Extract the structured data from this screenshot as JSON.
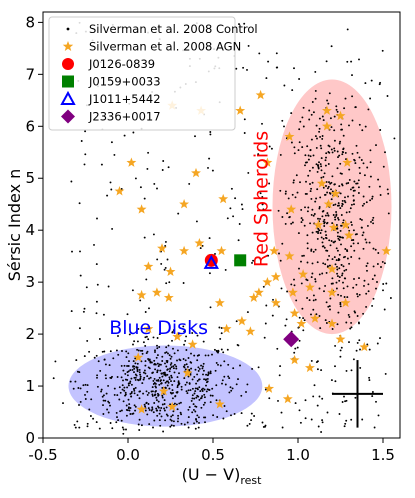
{
  "chart_data": {
    "type": "scatter",
    "xlabel_main": "(U − V)",
    "xlabel_sub": "rest",
    "ylabel": "Sérsic Index n",
    "xlim": [
      -0.5,
      1.6
    ],
    "ylim": [
      0,
      8.2
    ],
    "xticks": [
      -0.5,
      0.0,
      0.5,
      1.0,
      1.5
    ],
    "xtick_labels": [
      "-0.5",
      "0.0",
      "0.5",
      "1.0",
      "1.5"
    ],
    "yticks": [
      0,
      1,
      2,
      3,
      4,
      5,
      6,
      7,
      8
    ],
    "ytick_labels": [
      "0",
      "1",
      "2",
      "3",
      "4",
      "5",
      "6",
      "7",
      "8"
    ],
    "grid": false,
    "legend_position": "top-left",
    "legend": [
      {
        "label": "Silverman et al. 2008 Control",
        "marker": "dot",
        "color": "#000000"
      },
      {
        "label": "Silverman et al. 2008 AGN",
        "marker": "star",
        "color": "#f5a623"
      },
      {
        "label": "J0126-0839",
        "marker": "circle",
        "color": "#ff0000"
      },
      {
        "label": "J0159+0033",
        "marker": "square",
        "color": "#008000"
      },
      {
        "label": "J1011+5442",
        "marker": "triangle-open",
        "color": "#0000ff"
      },
      {
        "label": "J2336+0017",
        "marker": "diamond",
        "color": "#800080"
      }
    ],
    "regions": [
      {
        "label": "Blue Disks",
        "center": [
          0.22,
          1.0
        ],
        "radii": [
          0.57,
          0.78
        ],
        "fill": "#aaaaff",
        "text_color": "#0000ff",
        "label_at": [
          0.18,
          2.0
        ]
      },
      {
        "label": "Red Spheroids",
        "center": [
          1.2,
          4.45
        ],
        "radii": [
          0.35,
          2.45
        ],
        "fill": "#ffb0b0",
        "text_color": "#ff0000",
        "label_at": [
          0.75,
          4.6
        ]
      }
    ],
    "highlighted_objects": [
      {
        "name": "J0126-0839",
        "x": 0.49,
        "y": 3.42
      },
      {
        "name": "J0159+0033",
        "x": 0.66,
        "y": 3.42
      },
      {
        "name": "J1011+5442",
        "x": 0.49,
        "y": 3.37
      },
      {
        "name": "J2336+0017",
        "x": 0.96,
        "y": 1.9
      }
    ],
    "agn_points": [
      [
        0.26,
        6.4
      ],
      [
        0.43,
        6.3
      ],
      [
        0.66,
        6.3
      ],
      [
        0.78,
        6.6
      ],
      [
        1.17,
        6.3
      ],
      [
        1.25,
        6.2
      ],
      [
        0.02,
        5.3
      ],
      [
        0.4,
        5.1
      ],
      [
        1.29,
        5.3
      ],
      [
        1.14,
        4.9
      ],
      [
        0.95,
        5.8
      ],
      [
        0.82,
        5.3
      ],
      [
        -0.05,
        4.75
      ],
      [
        0.08,
        4.4
      ],
      [
        0.33,
        4.5
      ],
      [
        0.56,
        4.6
      ],
      [
        0.96,
        4.4
      ],
      [
        1.18,
        4.5
      ],
      [
        1.21,
        4.05
      ],
      [
        1.28,
        4.1
      ],
      [
        1.3,
        3.9
      ],
      [
        1.12,
        4.1
      ],
      [
        0.95,
        3.5
      ],
      [
        0.86,
        3.6
      ],
      [
        0.42,
        3.75
      ],
      [
        0.33,
        3.6
      ],
      [
        0.2,
        3.65
      ],
      [
        0.25,
        3.2
      ],
      [
        0.12,
        3.3
      ],
      [
        0.55,
        3.6
      ],
      [
        0.87,
        3.1
      ],
      [
        0.82,
        3.0
      ],
      [
        0.87,
        2.6
      ],
      [
        0.97,
        2.8
      ],
      [
        1.2,
        3.25
      ],
      [
        1.28,
        2.6
      ],
      [
        0.17,
        2.8
      ],
      [
        0.24,
        2.7
      ],
      [
        0.08,
        2.75
      ],
      [
        0.54,
        2.6
      ],
      [
        0.74,
        2.7
      ],
      [
        0.77,
        2.8
      ],
      [
        1.07,
        2.9
      ],
      [
        1.03,
        3.15
      ],
      [
        0.98,
        2.4
      ],
      [
        1.02,
        2.2
      ],
      [
        1.1,
        2.3
      ],
      [
        1.2,
        2.2
      ],
      [
        1.2,
        2.8
      ],
      [
        0.67,
        2.25
      ],
      [
        0.58,
        2.1
      ],
      [
        0.72,
        2.05
      ],
      [
        0.38,
        1.8
      ],
      [
        0.29,
        1.95
      ],
      [
        0.12,
        2.1
      ],
      [
        0.06,
        1.55
      ],
      [
        0.35,
        1.25
      ],
      [
        0.21,
        0.9
      ],
      [
        0.08,
        0.55
      ],
      [
        0.26,
        0.6
      ],
      [
        0.54,
        0.65
      ],
      [
        0.83,
        0.95
      ],
      [
        0.94,
        0.75
      ],
      [
        0.98,
        1.5
      ],
      [
        1.07,
        1.35
      ],
      [
        1.25,
        1.9
      ],
      [
        1.39,
        1.75
      ],
      [
        1.52,
        3.6
      ],
      [
        1.22,
        4.7
      ],
      [
        1.17,
        6.0
      ]
    ],
    "errorbar": {
      "x": 1.35,
      "y": 0.85,
      "xerr": 0.15,
      "yerr": 0.65
    }
  }
}
